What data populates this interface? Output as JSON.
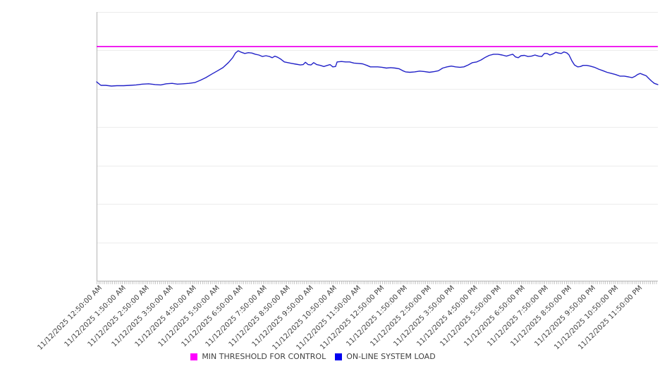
{
  "chart_data": {
    "type": "line",
    "title": "",
    "xlabel": "",
    "ylabel": "",
    "x_axis": {
      "range_minutes": 1435,
      "first_label_offset_minutes": 5,
      "label_interval_minutes": 60,
      "minor_tick_interval_minutes": 5,
      "labels": [
        "11/12/2025 12:50:00 AM",
        "11/12/2025 1:50:00 AM",
        "11/12/2025 2:50:00 AM",
        "11/12/2025 3:50:00 AM",
        "11/12/2025 4:50:00 AM",
        "11/12/2025 5:50:00 AM",
        "11/12/2025 6:50:00 AM",
        "11/12/2025 7:50:00 AM",
        "11/12/2025 8:50:00 AM",
        "11/12/2025 9:50:00 AM",
        "11/12/2025 10:50:00 AM",
        "11/12/2025 11:50:00 AM",
        "11/12/2025 12:50:00 PM",
        "11/12/2025 1:50:00 PM",
        "11/12/2025 2:50:00 PM",
        "11/12/2025 3:50:00 PM",
        "11/12/2025 4:50:00 PM",
        "11/12/2025 5:50:00 PM",
        "11/12/2025 6:50:00 PM",
        "11/12/2025 7:50:00 PM",
        "11/12/2025 8:50:00 PM",
        "11/12/2025 9:50:00 PM",
        "11/12/2025 10:50:00 PM",
        "11/12/2025 11:50:00 PM"
      ]
    },
    "y_axis": {
      "labels_visible": false,
      "ylim": [
        0,
        7
      ],
      "gridline_count": 7
    },
    "grid": "horizontal-only",
    "legend_position": "bottom",
    "series": [
      {
        "name": "MIN THRESHOLD FOR CONTROL",
        "type": "threshold",
        "color": "#EE00EE",
        "value": 6.1
      },
      {
        "name": "ON-LINE SYSTEM LOAD",
        "type": "line",
        "color": "#2222C8",
        "points": [
          [
            0,
            5.18
          ],
          [
            11,
            5.09
          ],
          [
            23,
            5.09
          ],
          [
            38,
            5.07
          ],
          [
            52,
            5.08
          ],
          [
            69,
            5.08
          ],
          [
            85,
            5.09
          ],
          [
            101,
            5.1
          ],
          [
            117,
            5.12
          ],
          [
            133,
            5.13
          ],
          [
            150,
            5.11
          ],
          [
            164,
            5.1
          ],
          [
            178,
            5.13
          ],
          [
            193,
            5.14
          ],
          [
            207,
            5.12
          ],
          [
            222,
            5.13
          ],
          [
            236,
            5.14
          ],
          [
            251,
            5.16
          ],
          [
            265,
            5.22
          ],
          [
            279,
            5.29
          ],
          [
            294,
            5.38
          ],
          [
            308,
            5.46
          ],
          [
            323,
            5.55
          ],
          [
            337,
            5.68
          ],
          [
            348,
            5.81
          ],
          [
            355,
            5.93
          ],
          [
            362,
            5.99
          ],
          [
            370,
            5.95
          ],
          [
            379,
            5.92
          ],
          [
            388,
            5.94
          ],
          [
            397,
            5.93
          ],
          [
            406,
            5.9
          ],
          [
            415,
            5.88
          ],
          [
            424,
            5.84
          ],
          [
            433,
            5.86
          ],
          [
            442,
            5.84
          ],
          [
            449,
            5.81
          ],
          [
            456,
            5.85
          ],
          [
            463,
            5.82
          ],
          [
            471,
            5.77
          ],
          [
            480,
            5.7
          ],
          [
            489,
            5.68
          ],
          [
            499,
            5.66
          ],
          [
            510,
            5.64
          ],
          [
            521,
            5.62
          ],
          [
            528,
            5.63
          ],
          [
            534,
            5.69
          ],
          [
            541,
            5.63
          ],
          [
            548,
            5.62
          ],
          [
            555,
            5.68
          ],
          [
            563,
            5.63
          ],
          [
            572,
            5.61
          ],
          [
            581,
            5.58
          ],
          [
            590,
            5.61
          ],
          [
            597,
            5.63
          ],
          [
            604,
            5.57
          ],
          [
            611,
            5.58
          ],
          [
            615,
            5.7
          ],
          [
            626,
            5.71
          ],
          [
            637,
            5.7
          ],
          [
            647,
            5.7
          ],
          [
            658,
            5.67
          ],
          [
            669,
            5.66
          ],
          [
            680,
            5.65
          ],
          [
            691,
            5.61
          ],
          [
            700,
            5.57
          ],
          [
            709,
            5.57
          ],
          [
            719,
            5.57
          ],
          [
            730,
            5.56
          ],
          [
            741,
            5.54
          ],
          [
            752,
            5.55
          ],
          [
            763,
            5.54
          ],
          [
            774,
            5.52
          ],
          [
            783,
            5.47
          ],
          [
            790,
            5.44
          ],
          [
            801,
            5.43
          ],
          [
            813,
            5.44
          ],
          [
            826,
            5.46
          ],
          [
            838,
            5.45
          ],
          [
            851,
            5.43
          ],
          [
            864,
            5.45
          ],
          [
            874,
            5.47
          ],
          [
            885,
            5.54
          ],
          [
            896,
            5.57
          ],
          [
            907,
            5.59
          ],
          [
            918,
            5.57
          ],
          [
            929,
            5.56
          ],
          [
            939,
            5.57
          ],
          [
            950,
            5.62
          ],
          [
            961,
            5.68
          ],
          [
            972,
            5.7
          ],
          [
            983,
            5.75
          ],
          [
            994,
            5.82
          ],
          [
            1004,
            5.87
          ],
          [
            1015,
            5.9
          ],
          [
            1026,
            5.9
          ],
          [
            1037,
            5.88
          ],
          [
            1048,
            5.85
          ],
          [
            1057,
            5.88
          ],
          [
            1064,
            5.9
          ],
          [
            1071,
            5.83
          ],
          [
            1078,
            5.81
          ],
          [
            1085,
            5.86
          ],
          [
            1094,
            5.87
          ],
          [
            1103,
            5.84
          ],
          [
            1112,
            5.85
          ],
          [
            1121,
            5.88
          ],
          [
            1130,
            5.85
          ],
          [
            1138,
            5.84
          ],
          [
            1145,
            5.92
          ],
          [
            1152,
            5.92
          ],
          [
            1159,
            5.88
          ],
          [
            1167,
            5.91
          ],
          [
            1174,
            5.95
          ],
          [
            1181,
            5.93
          ],
          [
            1188,
            5.92
          ],
          [
            1195,
            5.96
          ],
          [
            1203,
            5.93
          ],
          [
            1208,
            5.88
          ],
          [
            1215,
            5.73
          ],
          [
            1222,
            5.62
          ],
          [
            1230,
            5.57
          ],
          [
            1237,
            5.58
          ],
          [
            1244,
            5.61
          ],
          [
            1253,
            5.61
          ],
          [
            1262,
            5.59
          ],
          [
            1273,
            5.56
          ],
          [
            1284,
            5.51
          ],
          [
            1295,
            5.47
          ],
          [
            1305,
            5.43
          ],
          [
            1316,
            5.4
          ],
          [
            1327,
            5.37
          ],
          [
            1338,
            5.33
          ],
          [
            1349,
            5.33
          ],
          [
            1360,
            5.31
          ],
          [
            1369,
            5.29
          ],
          [
            1376,
            5.32
          ],
          [
            1383,
            5.37
          ],
          [
            1390,
            5.4
          ],
          [
            1397,
            5.37
          ],
          [
            1405,
            5.34
          ],
          [
            1412,
            5.27
          ],
          [
            1419,
            5.2
          ],
          [
            1426,
            5.14
          ],
          [
            1435,
            5.11
          ]
        ]
      }
    ],
    "legend": {
      "items": [
        {
          "label": "MIN THRESHOLD FOR CONTROL",
          "color": "#FF00FF"
        },
        {
          "label": "ON-LINE SYSTEM LOAD",
          "color": "#0000F0"
        }
      ]
    }
  },
  "colors": {
    "gridline": "#ececec",
    "axis": "#b5b5b5",
    "tick": "#c9c9c9",
    "label_text": "#404040"
  }
}
